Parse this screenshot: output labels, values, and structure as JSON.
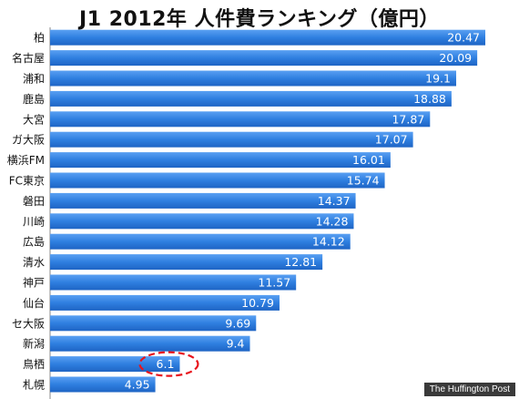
{
  "chart_data": {
    "type": "bar",
    "orientation": "horizontal",
    "title": "J1 2012年 人件費ランキング（億円）",
    "categories": [
      "柏",
      "名古屋",
      "浦和",
      "鹿島",
      "大宮",
      "ガ大阪",
      "横浜FM",
      "FC東京",
      "磐田",
      "川崎",
      "広島",
      "清水",
      "神戸",
      "仙台",
      "セ大阪",
      "新潟",
      "鳥栖",
      "札幌"
    ],
    "values": [
      20.47,
      20.09,
      19.1,
      18.88,
      17.87,
      17.07,
      16.01,
      15.74,
      14.37,
      14.28,
      14.12,
      12.81,
      11.57,
      10.79,
      9.69,
      9.4,
      6.1,
      4.95
    ],
    "value_labels": [
      "20.47",
      "20.09",
      "19.1",
      "18.88",
      "17.87",
      "17.07",
      "16.01",
      "15.74",
      "14.37",
      "14.28",
      "14.12",
      "12.81",
      "11.57",
      "10.79",
      "9.69",
      "9.4",
      "6.1",
      "4.95"
    ],
    "highlighted": "鳥栖",
    "highlight_color": "#e8141c",
    "bar_color": "#2f7fe0",
    "grid": false,
    "legend": "none"
  },
  "credit": "The Huffington Post"
}
